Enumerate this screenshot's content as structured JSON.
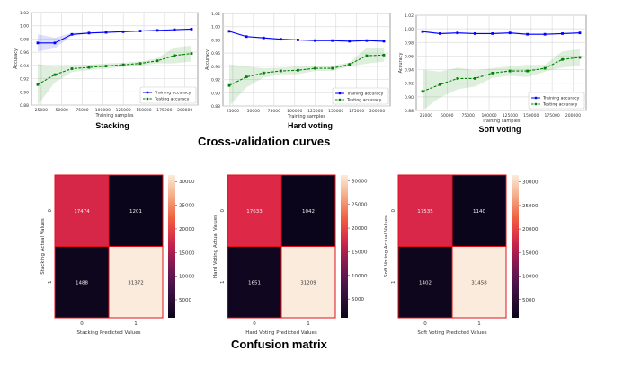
{
  "section_titles": {
    "curves": "Cross-validation curves",
    "matrix": "Confusion matrix"
  },
  "chart_data": [
    {
      "type": "line",
      "title": "Stacking",
      "xlabel": "Training samples",
      "ylabel": "Accuracy",
      "ylim": [
        0.88,
        1.02
      ],
      "yticks": [
        "0.88",
        "0.90",
        "0.92",
        "0.94",
        "0.96",
        "0.98",
        "1.00",
        "1.02"
      ],
      "xticks": [
        "25000",
        "50000",
        "75000",
        "100000",
        "125000",
        "150000",
        "175000",
        "200000"
      ],
      "grid": true,
      "legend": "bottom-right",
      "x": [
        20800,
        41600,
        62400,
        83200,
        104000,
        124800,
        145600,
        166400,
        187200,
        208000
      ],
      "series": [
        {
          "name": "Training accuracy",
          "color": "#0000ff",
          "values": [
            0.974,
            0.974,
            0.987,
            0.989,
            0.99,
            0.991,
            0.992,
            0.993,
            0.994,
            0.995
          ],
          "std": [
            0.013,
            0.008,
            0.002,
            0.001,
            0.001,
            0.001,
            0.001,
            0.001,
            0.001,
            0.001
          ]
        },
        {
          "name": "Testing accuracy",
          "color": "#008000",
          "values": [
            0.911,
            0.926,
            0.935,
            0.937,
            0.939,
            0.941,
            0.943,
            0.947,
            0.955,
            0.958
          ],
          "std": [
            0.031,
            0.012,
            0.005,
            0.004,
            0.004,
            0.003,
            0.003,
            0.004,
            0.012,
            0.012
          ]
        }
      ]
    },
    {
      "type": "line",
      "title": "Hard voting",
      "xlabel": "Training samples",
      "ylabel": "Accuracy",
      "ylim": [
        0.88,
        1.02
      ],
      "yticks": [
        "0.88",
        "0.90",
        "0.92",
        "0.94",
        "0.96",
        "0.98",
        "1.00",
        "1.02"
      ],
      "xticks": [
        "25000",
        "50000",
        "75000",
        "100000",
        "125000",
        "150000",
        "175000",
        "200000"
      ],
      "grid": true,
      "legend": "bottom-right",
      "x": [
        20800,
        41600,
        62400,
        83200,
        104000,
        124800,
        145600,
        166400,
        187200,
        208000
      ],
      "series": [
        {
          "name": "Training accuracy",
          "color": "#0000ff",
          "values": [
            0.993,
            0.985,
            0.983,
            0.981,
            0.98,
            0.979,
            0.979,
            0.978,
            0.979,
            0.978
          ],
          "std": [
            0.001,
            0.001,
            0.001,
            0.001,
            0.001,
            0.001,
            0.001,
            0.001,
            0.001,
            0.001
          ]
        },
        {
          "name": "Testing accuracy",
          "color": "#008000",
          "values": [
            0.911,
            0.924,
            0.93,
            0.933,
            0.934,
            0.937,
            0.937,
            0.943,
            0.956,
            0.957
          ],
          "std": [
            0.032,
            0.016,
            0.007,
            0.005,
            0.006,
            0.004,
            0.004,
            0.003,
            0.012,
            0.01
          ]
        }
      ]
    },
    {
      "type": "line",
      "title": "Soft voting",
      "xlabel": "Training samples",
      "ylabel": "Accuracy",
      "ylim": [
        0.88,
        1.02
      ],
      "yticks": [
        "0.88",
        "0.90",
        "0.92",
        "0.94",
        "0.96",
        "0.98",
        "1.00",
        "1.02"
      ],
      "xticks": [
        "25000",
        "50000",
        "75000",
        "100000",
        "125000",
        "150000",
        "175000",
        "200000"
      ],
      "grid": true,
      "legend": "bottom-right",
      "x": [
        20800,
        41600,
        62400,
        83200,
        104000,
        124800,
        145600,
        166400,
        187200,
        208000
      ],
      "series": [
        {
          "name": "Training accuracy",
          "color": "#0000ff",
          "values": [
            0.996,
            0.993,
            0.994,
            0.993,
            0.993,
            0.994,
            0.992,
            0.992,
            0.993,
            0.994
          ],
          "std": [
            0.001,
            0.001,
            0.001,
            0.001,
            0.001,
            0.001,
            0.001,
            0.001,
            0.001,
            0.001
          ]
        },
        {
          "name": "Testing accuracy",
          "color": "#008000",
          "values": [
            0.908,
            0.918,
            0.927,
            0.927,
            0.935,
            0.938,
            0.938,
            0.942,
            0.955,
            0.958
          ],
          "std": [
            0.032,
            0.019,
            0.016,
            0.012,
            0.007,
            0.007,
            0.009,
            0.005,
            0.012,
            0.012
          ]
        }
      ]
    },
    {
      "type": "heatmap",
      "xlabel": "Stacking Predicted Values",
      "ylabel": "Stacking Actual Values",
      "xticks": [
        "0",
        "1"
      ],
      "yticks": [
        "0",
        "1"
      ],
      "values": [
        [
          17474,
          1201
        ],
        [
          1488,
          31372
        ]
      ],
      "colorbar_ticks": [
        "5000",
        "10000",
        "15000",
        "20000",
        "25000",
        "30000"
      ]
    },
    {
      "type": "heatmap",
      "xlabel": "Hard Voting  Predicted Values",
      "ylabel": "Hard Voting Actual Values",
      "xticks": [
        "0",
        "1"
      ],
      "yticks": [
        "0",
        "1"
      ],
      "values": [
        [
          17633,
          1042
        ],
        [
          1651,
          31209
        ]
      ],
      "colorbar_ticks": [
        "5000",
        "10000",
        "15000",
        "20000",
        "25000",
        "30000"
      ]
    },
    {
      "type": "heatmap",
      "xlabel": "Soft Voting  Predicted Values",
      "ylabel": "Soft Voting Actual Values",
      "xticks": [
        "0",
        "1"
      ],
      "yticks": [
        "0",
        "1"
      ],
      "values": [
        [
          17535,
          1140
        ],
        [
          1402,
          31458
        ]
      ],
      "colorbar_ticks": [
        "5000",
        "10000",
        "15000",
        "20000",
        "25000",
        "30000"
      ]
    }
  ]
}
